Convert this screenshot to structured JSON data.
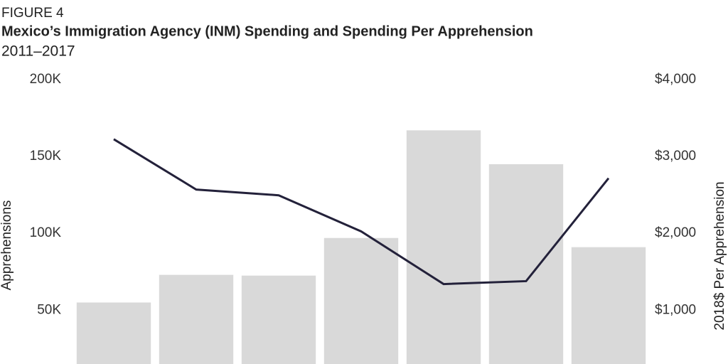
{
  "chart_data": {
    "type": "combo",
    "figure_label": "FIGURE 4",
    "title": "Mexico’s Immigration Agency (INM) Spending and Spending Per Apprehension",
    "subtitle": "2011–2017",
    "y_label": "Apprehensions",
    "y2_label": "2018$ Per Apprehension",
    "series": [
      {
        "type": "bar",
        "color": "#d9d9d9",
        "values": [
          55000,
          73000,
          72500,
          97000,
          167000,
          145000,
          91000
        ]
      },
      {
        "type": "line",
        "axis": "y2",
        "color": "#23213a",
        "values": [
          3225,
          2570,
          2495,
          2025,
          1340,
          1378,
          2717
        ]
      }
    ],
    "ylim": [
      15000,
      200000
    ],
    "yticks": [
      {
        "value": 50000,
        "label": "50K"
      },
      {
        "value": 100000,
        "label": "100K"
      },
      {
        "value": 150000,
        "label": "150K"
      },
      {
        "value": 200000,
        "label": "200K"
      }
    ],
    "y2lim": [
      300,
      4000
    ],
    "y2ticks": [
      {
        "value": 1000,
        "label": "$1,000"
      },
      {
        "value": 2000,
        "label": "$2,000"
      },
      {
        "value": 3000,
        "label": "$3,000"
      },
      {
        "value": 4000,
        "label": "$4,000"
      }
    ],
    "grid": false
  }
}
